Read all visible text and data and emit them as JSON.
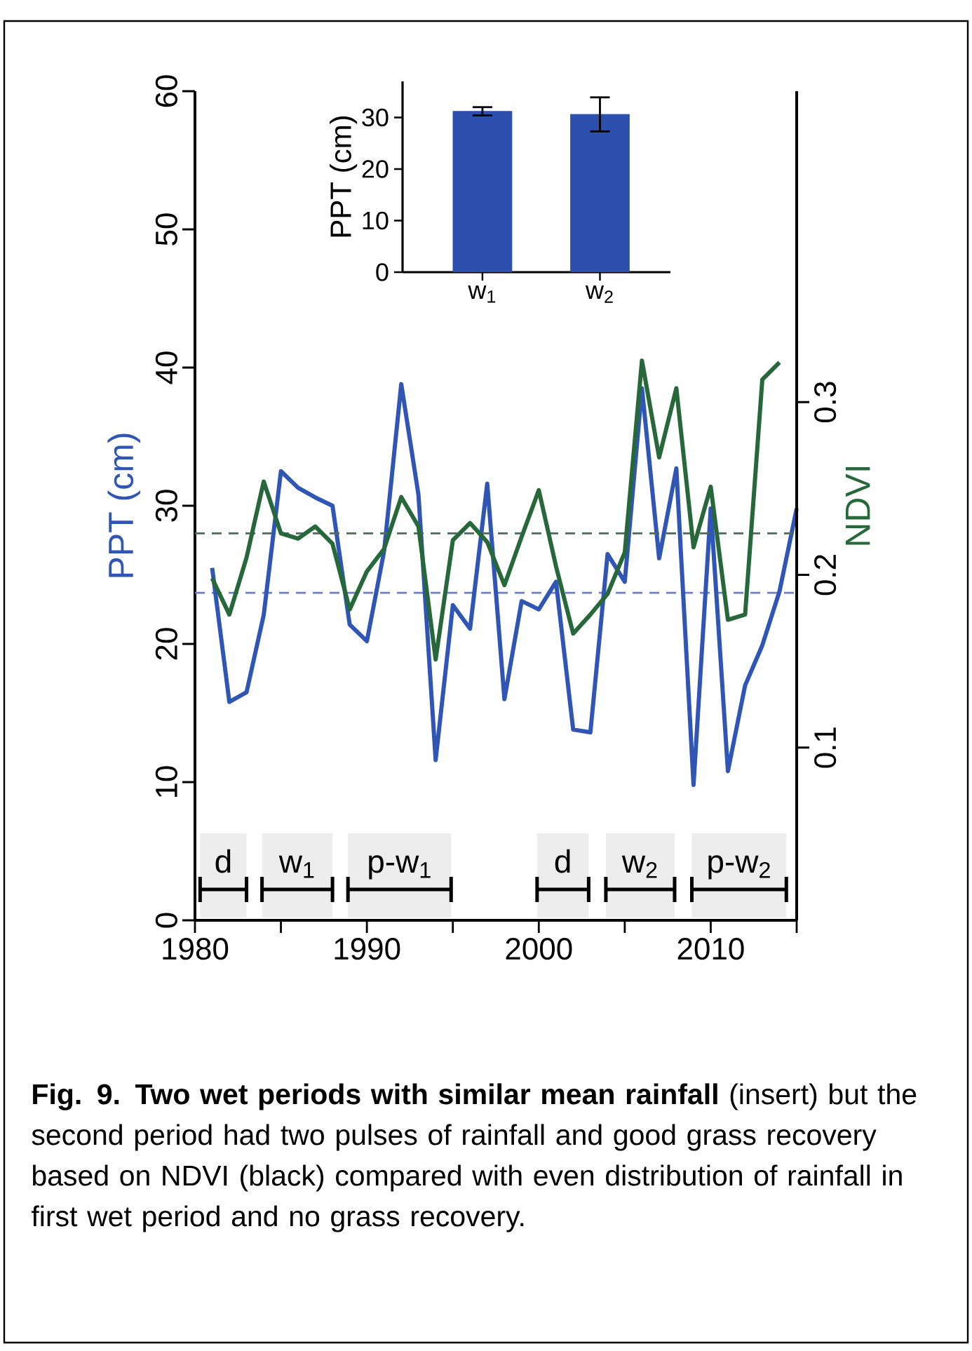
{
  "chart_data": [
    {
      "type": "line",
      "x": [
        1981,
        1982,
        1983,
        1984,
        1985,
        1986,
        1987,
        1988,
        1989,
        1990,
        1991,
        1992,
        1993,
        1994,
        1995,
        1996,
        1997,
        1998,
        1999,
        2000,
        2001,
        2002,
        2003,
        2004,
        2005,
        2006,
        2007,
        2008,
        2009,
        2010,
        2011,
        2012,
        2013,
        2014,
        2015
      ],
      "series": [
        {
          "color": "#2f56b5",
          "values": [
            25.5,
            15.8,
            16.5,
            22.1,
            32.5,
            31.3,
            30.6,
            30.0,
            21.4,
            20.2,
            26.7,
            38.8,
            30.8,
            11.6,
            22.8,
            21.1,
            31.6,
            16.0,
            23.1,
            22.5,
            24.5,
            13.8,
            13.6,
            26.5,
            24.5,
            38.5,
            26.2,
            32.7,
            9.8,
            29.8,
            10.8,
            17.0,
            19.9,
            23.8,
            29.8
          ]
        },
        {
          "color": "#27683a",
          "axis": "y2",
          "values": [
            0.198,
            0.177,
            0.21,
            0.254,
            0.224,
            0.221,
            0.228,
            0.218,
            0.18,
            0.202,
            0.215,
            0.245,
            0.228,
            0.151,
            0.22,
            0.23,
            0.219,
            0.194,
            0.222,
            0.249,
            0.205,
            0.166,
            0.177,
            0.189,
            0.213,
            0.324,
            0.268,
            0.308,
            0.216,
            0.251,
            0.174,
            0.177,
            0.313,
            0.323,
            null
          ]
        }
      ],
      "ylabel": "PPT (cm)",
      "y2label": "NDVI",
      "xlim": [
        1980,
        2015
      ],
      "xticks": [
        1980,
        {
          "value": 1985,
          "label": null
        },
        1990,
        {
          "value": 1995,
          "label": null
        },
        2000,
        {
          "value": 2005,
          "label": null
        },
        2010,
        {
          "value": 2015,
          "label": null
        }
      ],
      "ylim": [
        0,
        60
      ],
      "yticks": [
        0,
        10,
        20,
        30,
        40,
        50,
        60
      ],
      "y2lim": [
        0,
        0.48
      ],
      "y2ticks": [
        0.1,
        0.2,
        0.3
      ],
      "ref_lines": [
        {
          "axis": "y",
          "value": 23.7,
          "color": "#6f7fc8",
          "line_style": "dashed"
        },
        {
          "axis": "y2",
          "value": 0.224,
          "color": "#4d6b5a",
          "line_style": "dashed"
        }
      ],
      "bands": [
        {
          "axis": "x",
          "from": 1980.3,
          "to": 1983.0,
          "label": "d"
        },
        {
          "axis": "x",
          "from": 1983.9,
          "to": 1988.0,
          "label": "w$_{1}$"
        },
        {
          "axis": "x",
          "from": 1988.9,
          "to": 1994.9,
          "label": "p-w$_{1}$"
        },
        {
          "axis": "x",
          "from": 1999.9,
          "to": 2002.9,
          "label": "d"
        },
        {
          "axis": "x",
          "from": 2003.9,
          "to": 2007.9,
          "label": "w$_{2}$"
        },
        {
          "axis": "x",
          "from": 2008.9,
          "to": 2014.4,
          "label": "p-w$_{2}$"
        }
      ],
      "annotations": [
        "**Fig. 9. Two wet periods with similar mean rainfall** (insert) but the second period had two pulses of rainfall and good grass recovery based on NDVI (black) compared with even distribution of rainfall in first wet period and no grass recovery."
      ]
    },
    {
      "type": "bar",
      "categories": [
        "w$_{1}$",
        "w$_{2}$"
      ],
      "values": [
        31.2,
        30.6
      ],
      "errors": [
        0.8,
        3.3
      ],
      "color": "#2d50ae",
      "ylabel": "PPT (cm)",
      "ylim": [
        0,
        37
      ],
      "yticks": [
        0,
        10,
        20,
        30
      ]
    }
  ]
}
